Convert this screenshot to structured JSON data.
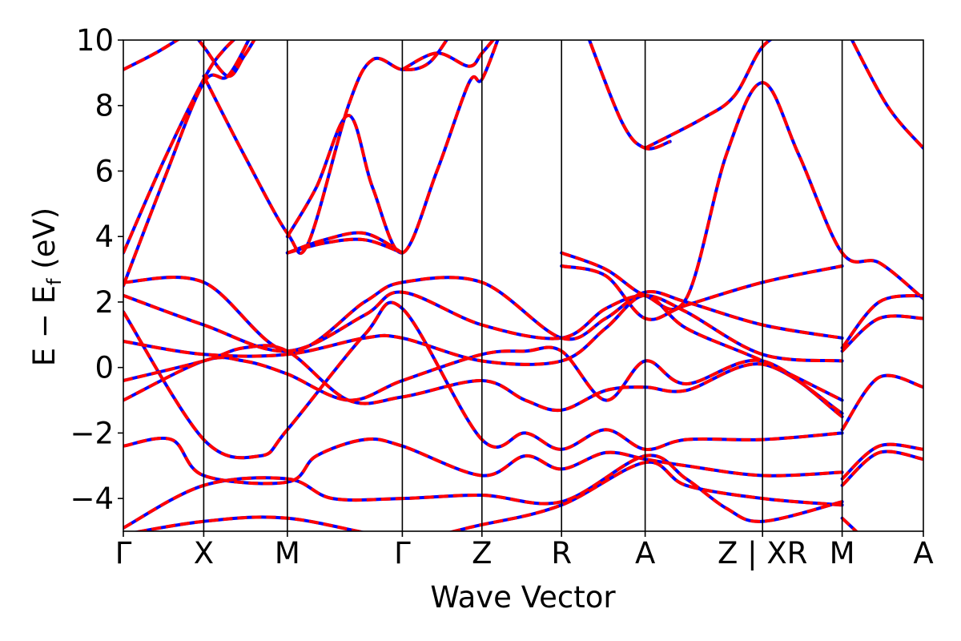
{
  "chart_data": {
    "type": "line",
    "title": "",
    "xlabel": "Wave Vector",
    "ylabel": {
      "main": "E − E",
      "sub": "f",
      "unit": " (eV)"
    },
    "ylim": [
      -5,
      10
    ],
    "yticks": [
      10,
      8,
      6,
      4,
      2,
      0,
      -2,
      -4
    ],
    "ytick_labels": [
      "10",
      "8",
      "6",
      "4",
      "2",
      "0",
      "−2",
      "−4"
    ],
    "k_path": [
      {
        "label": "Γ",
        "k": 0.0
      },
      {
        "label": "X",
        "k": 1.0
      },
      {
        "label": "M",
        "k": 2.04
      },
      {
        "label": "Γ",
        "k": 3.47
      },
      {
        "label": "Z",
        "k": 4.46
      },
      {
        "label": "R",
        "k": 5.45
      },
      {
        "label": "A",
        "k": 6.49
      },
      {
        "label": "Z | XR",
        "k": 7.95
      },
      {
        "label": "M",
        "k": 8.94
      },
      {
        "label": "A",
        "k": 9.95
      }
    ],
    "k_range": [
      0,
      9.95
    ],
    "grid": false,
    "series": [
      {
        "color": "#0000ff",
        "style": "solid",
        "bands": [
          [
            [
              0,
              3.5
            ],
            [
              0.5,
              6.3
            ],
            [
              1.0,
              8.8
            ],
            [
              1.25,
              9.7
            ],
            [
              1.6,
              10.5
            ]
          ],
          [
            [
              0,
              2.5
            ],
            [
              0.5,
              5.7
            ],
            [
              1.0,
              8.7
            ],
            [
              1.3,
              8.9
            ],
            [
              1.6,
              10.2
            ]
          ],
          [
            [
              0,
              9.1
            ],
            [
              0.4,
              9.6
            ],
            [
              0.8,
              10.2
            ]
          ],
          [
            [
              0.85,
              10.3
            ],
            [
              1.0,
              9.8
            ],
            [
              1.3,
              8.9
            ],
            [
              1.5,
              9.5
            ],
            [
              1.7,
              10.3
            ]
          ],
          [
            [
              1.0,
              8.9
            ],
            [
              1.5,
              6.5
            ],
            [
              2.04,
              4.1
            ],
            [
              2.3,
              3.8
            ],
            [
              2.8,
              8.0
            ],
            [
              3.1,
              9.4
            ],
            [
              3.47,
              9.1
            ],
            [
              3.8,
              9.3
            ],
            [
              4.1,
              10.3
            ]
          ],
          [
            [
              2.04,
              4.0
            ],
            [
              2.4,
              5.5
            ],
            [
              2.8,
              7.7
            ],
            [
              3.1,
              5.5
            ],
            [
              3.47,
              3.5
            ],
            [
              3.9,
              6.0
            ],
            [
              4.3,
              8.7
            ],
            [
              4.46,
              8.8
            ],
            [
              4.7,
              10.3
            ]
          ],
          [
            [
              2.04,
              3.5
            ],
            [
              2.5,
              3.9
            ],
            [
              3.0,
              4.1
            ],
            [
              3.47,
              3.5
            ]
          ],
          [
            [
              2.04,
              3.5
            ],
            [
              2.5,
              3.8
            ],
            [
              3.0,
              3.9
            ],
            [
              3.47,
              3.5
            ]
          ],
          [
            [
              3.47,
              9.1
            ],
            [
              3.9,
              9.6
            ],
            [
              4.3,
              9.2
            ],
            [
              4.46,
              9.6
            ],
            [
              4.7,
              10.3
            ]
          ],
          [
            [
              5.45,
              3.5
            ],
            [
              6.0,
              3.0
            ],
            [
              6.49,
              2.2
            ],
            [
              7.0,
              2.1
            ],
            [
              7.5,
              6.5
            ],
            [
              7.95,
              8.7
            ],
            [
              8.4,
              6.5
            ],
            [
              8.94,
              3.5
            ],
            [
              9.4,
              3.2
            ],
            [
              9.95,
              2.1
            ]
          ],
          [
            [
              5.45,
              3.1
            ],
            [
              6.0,
              2.8
            ],
            [
              6.49,
              1.5
            ],
            [
              7.0,
              1.9
            ],
            [
              7.95,
              2.6
            ],
            [
              8.94,
              3.1
            ]
          ],
          [
            [
              6.49,
              6.7
            ],
            [
              7.2,
              7.6
            ],
            [
              7.6,
              8.3
            ],
            [
              7.95,
              9.8
            ],
            [
              8.3,
              10.3
            ]
          ],
          [
            [
              5.75,
              10.3
            ],
            [
              6.2,
              7.5
            ],
            [
              6.49,
              6.7
            ],
            [
              6.8,
              6.9
            ]
          ],
          [
            [
              9.0,
              10.3
            ],
            [
              9.5,
              8.0
            ],
            [
              9.95,
              6.7
            ]
          ],
          [
            [
              0,
              2.6
            ],
            [
              1.0,
              2.6
            ],
            [
              2.04,
              0.5
            ],
            [
              3.0,
              2.0
            ],
            [
              3.47,
              2.6
            ],
            [
              4.46,
              2.6
            ],
            [
              5.45,
              0.9
            ],
            [
              6.0,
              1.5
            ],
            [
              6.49,
              2.3
            ],
            [
              7.0,
              2.0
            ],
            [
              7.95,
              1.3
            ],
            [
              8.94,
              0.9
            ]
          ],
          [
            [
              0,
              2.2
            ],
            [
              1.0,
              1.3
            ],
            [
              2.04,
              0.5
            ],
            [
              3.0,
              1.6
            ],
            [
              3.47,
              2.3
            ],
            [
              4.46,
              1.3
            ],
            [
              5.45,
              0.9
            ],
            [
              6.0,
              1.8
            ],
            [
              6.49,
              2.2
            ],
            [
              7.0,
              1.7
            ],
            [
              7.95,
              0.4
            ],
            [
              8.94,
              0.2
            ]
          ],
          [
            [
              0,
              0.8
            ],
            [
              1.0,
              0.4
            ],
            [
              2.04,
              0.4
            ],
            [
              3.0,
              0.9
            ],
            [
              3.47,
              0.9
            ],
            [
              4.46,
              0.2
            ],
            [
              5.45,
              0.2
            ],
            [
              6.0,
              1.2
            ],
            [
              6.49,
              2.2
            ],
            [
              7.0,
              1.2
            ],
            [
              7.95,
              0.2
            ],
            [
              8.94,
              -1.0
            ]
          ],
          [
            [
              0,
              -0.4
            ],
            [
              1.0,
              0.2
            ],
            [
              1.5,
              0.6
            ],
            [
              2.04,
              0.5
            ],
            [
              2.8,
              -1.0
            ],
            [
              3.47,
              -0.9
            ],
            [
              4.46,
              -0.4
            ],
            [
              5.0,
              -1.0
            ],
            [
              5.45,
              -1.3
            ],
            [
              6.0,
              -0.7
            ],
            [
              6.49,
              -0.6
            ],
            [
              7.0,
              -0.7
            ],
            [
              7.95,
              0.1
            ],
            [
              8.94,
              -1.4
            ]
          ],
          [
            [
              0,
              -1.0
            ],
            [
              1.0,
              0.2
            ],
            [
              1.5,
              0.2
            ],
            [
              2.04,
              -0.2
            ],
            [
              2.8,
              -1.0
            ],
            [
              3.47,
              -0.4
            ],
            [
              4.46,
              0.4
            ],
            [
              5.0,
              0.5
            ],
            [
              5.45,
              0.5
            ],
            [
              6.0,
              -1.0
            ],
            [
              6.49,
              0.2
            ],
            [
              7.0,
              -0.5
            ],
            [
              7.95,
              0.2
            ],
            [
              8.94,
              -1.5
            ]
          ],
          [
            [
              0,
              1.7
            ],
            [
              1.0,
              -2.2
            ],
            [
              1.7,
              -2.7
            ],
            [
              2.04,
              -1.9
            ],
            [
              3.0,
              1.0
            ],
            [
              3.47,
              1.8
            ],
            [
              4.46,
              -2.2
            ],
            [
              5.0,
              -2.0
            ],
            [
              5.45,
              -2.5
            ],
            [
              6.0,
              -1.9
            ],
            [
              6.49,
              -2.5
            ],
            [
              7.0,
              -2.2
            ],
            [
              7.95,
              -2.2
            ],
            [
              8.94,
              -2.0
            ]
          ],
          [
            [
              0,
              -2.4
            ],
            [
              0.6,
              -2.2
            ],
            [
              1.0,
              -3.3
            ],
            [
              2.04,
              -3.5
            ],
            [
              2.4,
              -2.7
            ],
            [
              3.0,
              -2.2
            ],
            [
              3.47,
              -2.4
            ],
            [
              4.46,
              -3.3
            ],
            [
              5.0,
              -2.7
            ],
            [
              5.45,
              -3.1
            ],
            [
              6.0,
              -2.6
            ],
            [
              6.49,
              -2.8
            ],
            [
              7.0,
              -3.0
            ],
            [
              7.95,
              -3.3
            ],
            [
              8.94,
              -3.2
            ]
          ],
          [
            [
              0,
              -4.9
            ],
            [
              1.0,
              -3.6
            ],
            [
              2.04,
              -3.4
            ],
            [
              2.6,
              -4.0
            ],
            [
              3.47,
              -4.0
            ],
            [
              4.46,
              -3.9
            ],
            [
              5.45,
              -4.1
            ],
            [
              6.49,
              -2.7
            ],
            [
              7.0,
              -3.4
            ],
            [
              7.5,
              -4.3
            ],
            [
              7.95,
              -4.7
            ],
            [
              8.94,
              -4.1
            ]
          ],
          [
            [
              0,
              -5.1
            ],
            [
              1.0,
              -4.7
            ],
            [
              2.04,
              -4.6
            ],
            [
              3.47,
              -5.2
            ],
            [
              4.46,
              -4.8
            ],
            [
              5.45,
              -4.2
            ],
            [
              6.49,
              -2.9
            ],
            [
              7.0,
              -3.6
            ],
            [
              7.95,
              -4.0
            ],
            [
              8.94,
              -4.2
            ]
          ],
          [
            [
              8.94,
              0.5
            ],
            [
              9.4,
              1.5
            ],
            [
              9.95,
              1.5
            ]
          ],
          [
            [
              8.94,
              0.6
            ],
            [
              9.4,
              2.0
            ],
            [
              9.95,
              2.2
            ]
          ],
          [
            [
              8.94,
              -1.9
            ],
            [
              9.4,
              -0.3
            ],
            [
              9.95,
              -0.6
            ]
          ],
          [
            [
              8.94,
              -3.4
            ],
            [
              9.4,
              -2.4
            ],
            [
              9.95,
              -2.5
            ]
          ],
          [
            [
              8.94,
              -3.6
            ],
            [
              9.4,
              -2.6
            ],
            [
              9.95,
              -2.8
            ]
          ],
          [
            [
              8.94,
              -4.6
            ],
            [
              9.2,
              -5.2
            ]
          ]
        ]
      },
      {
        "color": "#ff0000",
        "style": "dashed",
        "bands_ref": 0
      }
    ]
  }
}
